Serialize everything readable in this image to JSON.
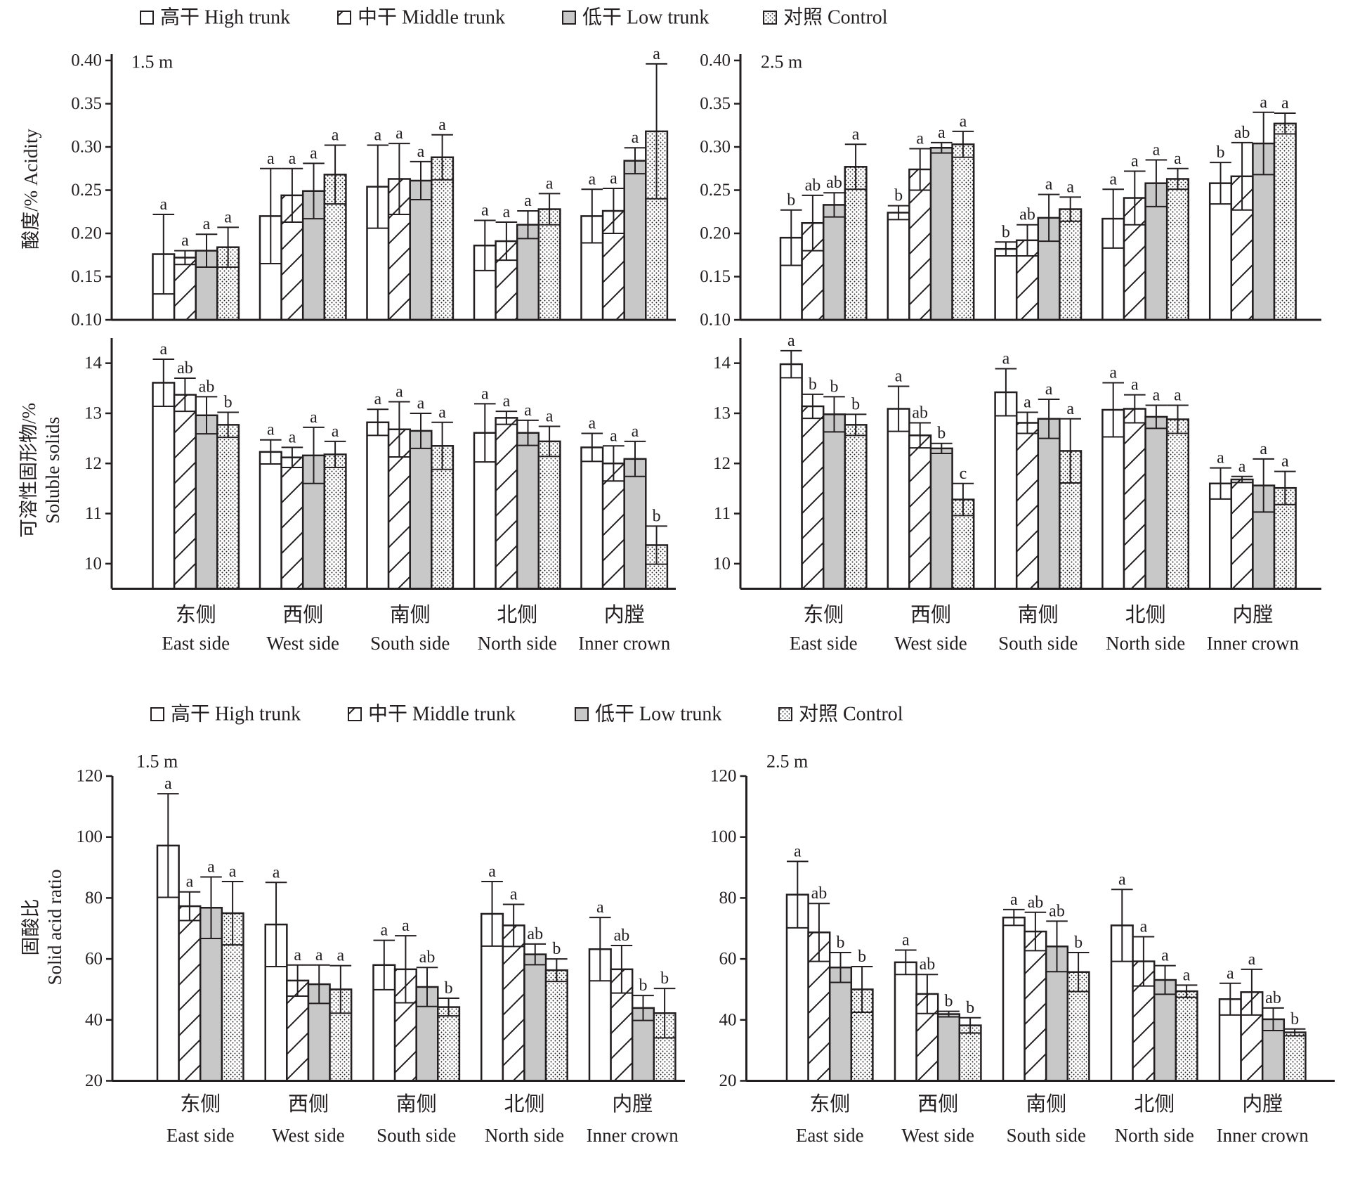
{
  "chart_data": {
    "type": "bar",
    "legend_position": "top",
    "grid": false,
    "categories": [
      {
        "zh": "东侧",
        "en": "East side"
      },
      {
        "zh": "西侧",
        "en": "West side"
      },
      {
        "zh": "南侧",
        "en": "South side"
      },
      {
        "zh": "北侧",
        "en": "North side"
      },
      {
        "zh": "内膛",
        "en": "Inner crown"
      }
    ],
    "series": [
      {
        "name": "高干 High trunk",
        "fill": "#ffffff"
      },
      {
        "name": "中干 Middle trunk",
        "fill": "#ffffff",
        "pattern": "diagonal-hatch"
      },
      {
        "name": "低干 Low trunk",
        "fill": "#c8c8c8"
      },
      {
        "name": "对照 Control",
        "fill": "#ffffff",
        "pattern": "dotted"
      }
    ],
    "panels": [
      {
        "panel_label": "1.5 m",
        "ylabel": [
          "酸度/% Acidity"
        ],
        "ylim": [
          0.1,
          0.4
        ],
        "yticks": [
          "0.10",
          "0.15",
          "0.20",
          "0.25",
          "0.30",
          "0.35",
          "0.40"
        ],
        "series": [
          {
            "values": [
              0.176,
              0.22,
              0.254,
              0.186,
              0.22
            ],
            "err": [
              0.046,
              0.055,
              0.048,
              0.029,
              0.031
            ],
            "letters": [
              "a",
              "a",
              "a",
              "a",
              "a"
            ]
          },
          {
            "values": [
              0.172,
              0.244,
              0.263,
              0.191,
              0.226
            ],
            "err": [
              0.008,
              0.031,
              0.041,
              0.022,
              0.026
            ],
            "letters": [
              "a",
              "a",
              "a",
              "a",
              "a"
            ]
          },
          {
            "values": [
              0.18,
              0.249,
              0.261,
              0.21,
              0.284
            ],
            "err": [
              0.019,
              0.032,
              0.022,
              0.016,
              0.015
            ],
            "letters": [
              "a",
              "a",
              "a",
              "a",
              "a"
            ]
          },
          {
            "values": [
              0.184,
              0.268,
              0.288,
              0.228,
              0.318
            ],
            "err": [
              0.023,
              0.034,
              0.026,
              0.018,
              0.078
            ],
            "letters": [
              "a",
              "a",
              "a",
              "a",
              "a"
            ]
          }
        ]
      },
      {
        "panel_label": "2.5 m",
        "ylim": [
          0.1,
          0.4
        ],
        "yticks": [
          "0.10",
          "0.15",
          "0.20",
          "0.25",
          "0.30",
          "0.35",
          "0.40"
        ],
        "series": [
          {
            "values": [
              0.195,
              0.224,
              0.182,
              0.217,
              0.258
            ],
            "err": [
              0.032,
              0.008,
              0.008,
              0.034,
              0.024
            ],
            "letters": [
              "b",
              "b",
              "b",
              "a",
              "b"
            ]
          },
          {
            "values": [
              0.212,
              0.274,
              0.192,
              0.241,
              0.266
            ],
            "err": [
              0.032,
              0.024,
              0.018,
              0.031,
              0.039
            ],
            "letters": [
              "ab",
              "a",
              "ab",
              "a",
              "ab"
            ]
          },
          {
            "values": [
              0.233,
              0.299,
              0.218,
              0.258,
              0.304
            ],
            "err": [
              0.014,
              0.006,
              0.027,
              0.027,
              0.036
            ],
            "letters": [
              "ab",
              "a",
              "a",
              "a",
              "a"
            ]
          },
          {
            "values": [
              0.277,
              0.303,
              0.228,
              0.263,
              0.327
            ],
            "err": [
              0.026,
              0.015,
              0.014,
              0.012,
              0.012
            ],
            "letters": [
              "a",
              "a",
              "a",
              "a",
              "a"
            ]
          }
        ]
      },
      {
        "ylabel": [
          "可溶性固形物/%",
          "Soluble solids"
        ],
        "ylim": [
          9.5,
          14.5
        ],
        "yticks": [
          "10",
          "11",
          "12",
          "13",
          "14"
        ],
        "series": [
          {
            "values": [
              13.61,
              12.23,
              12.82,
              12.61,
              12.32
            ],
            "err": [
              0.47,
              0.24,
              0.26,
              0.58,
              0.28
            ],
            "letters": [
              "a",
              "a",
              "a",
              "a",
              "a"
            ]
          },
          {
            "values": [
              13.37,
              12.12,
              12.68,
              12.91,
              12.0
            ],
            "err": [
              0.33,
              0.2,
              0.55,
              0.13,
              0.35
            ],
            "letters": [
              "ab",
              "a",
              "a",
              "a",
              "a"
            ]
          },
          {
            "values": [
              12.96,
              12.16,
              12.65,
              12.61,
              12.09
            ],
            "err": [
              0.37,
              0.56,
              0.35,
              0.25,
              0.35
            ],
            "letters": [
              "ab",
              "a",
              "a",
              "a",
              "a"
            ]
          },
          {
            "values": [
              12.77,
              12.18,
              12.35,
              12.44,
              10.37
            ],
            "err": [
              0.25,
              0.26,
              0.47,
              0.3,
              0.38
            ],
            "letters": [
              "b",
              "a",
              "a",
              "a",
              "b"
            ]
          }
        ]
      },
      {
        "ylim": [
          9.5,
          14.5
        ],
        "yticks": [
          "10",
          "11",
          "12",
          "13",
          "14"
        ],
        "series": [
          {
            "values": [
              13.98,
              13.09,
              13.42,
              13.07,
              11.6
            ],
            "err": [
              0.27,
              0.45,
              0.47,
              0.54,
              0.31
            ],
            "letters": [
              "a",
              "a",
              "a",
              "a",
              "a"
            ]
          },
          {
            "values": [
              13.14,
              12.56,
              12.81,
              13.09,
              11.68
            ],
            "err": [
              0.24,
              0.25,
              0.21,
              0.28,
              0.06
            ],
            "letters": [
              "b",
              "ab",
              "a",
              "a",
              "a"
            ]
          },
          {
            "values": [
              12.98,
              12.3,
              12.89,
              12.93,
              11.56
            ],
            "err": [
              0.35,
              0.1,
              0.39,
              0.23,
              0.53
            ],
            "letters": [
              "b",
              "b",
              "a",
              "a",
              "a"
            ]
          },
          {
            "values": [
              12.77,
              11.28,
              12.25,
              12.88,
              11.51
            ],
            "err": [
              0.21,
              0.32,
              0.64,
              0.28,
              0.33
            ],
            "letters": [
              "b",
              "c",
              "a",
              "a",
              "a"
            ]
          }
        ]
      },
      {
        "panel_label": "1.5 m",
        "ylabel": [
          "固酸比",
          "Solid acid ratio"
        ],
        "ylim": [
          20,
          120
        ],
        "yticks": [
          "20",
          "40",
          "60",
          "80",
          "100",
          "120"
        ],
        "series": [
          {
            "values": [
              97.2,
              71.3,
              58.0,
              74.8,
              63.2
            ],
            "err": [
              17.0,
              13.8,
              8.1,
              10.6,
              10.4
            ],
            "letters": [
              "a",
              "a",
              "a",
              "a",
              "a"
            ]
          },
          {
            "values": [
              77.3,
              52.9,
              56.6,
              71.0,
              56.6
            ],
            "err": [
              4.7,
              5.1,
              11.0,
              6.9,
              7.8
            ],
            "letters": [
              "a",
              "a",
              "a",
              "a",
              "ab"
            ]
          },
          {
            "values": [
              76.8,
              51.7,
              50.8,
              61.5,
              43.9
            ],
            "err": [
              10.1,
              6.3,
              6.4,
              3.4,
              4.1
            ],
            "letters": [
              "a",
              "a",
              "ab",
              "ab",
              "b"
            ]
          },
          {
            "values": [
              75.0,
              50.0,
              44.2,
              56.3,
              42.2
            ],
            "err": [
              10.4,
              7.8,
              2.9,
              3.7,
              8.1
            ],
            "letters": [
              "a",
              "a",
              "b",
              "b",
              "b"
            ]
          }
        ]
      },
      {
        "panel_label": "2.5 m",
        "ylim": [
          20,
          120
        ],
        "yticks": [
          "20",
          "40",
          "60",
          "80",
          "100",
          "120"
        ],
        "series": [
          {
            "values": [
              81.1,
              58.9,
              73.6,
              71.0,
              46.8
            ],
            "err": [
              10.9,
              4.0,
              2.6,
              11.8,
              5.2
            ],
            "letters": [
              "a",
              "a",
              "a",
              "a",
              "a"
            ]
          },
          {
            "values": [
              68.7,
              48.5,
              69.0,
              59.2,
              49.1
            ],
            "err": [
              9.5,
              6.4,
              6.3,
              8.1,
              7.5
            ],
            "letters": [
              "ab",
              "ab",
              "ab",
              "a",
              "a"
            ]
          },
          {
            "values": [
              57.2,
              41.9,
              64.1,
              53.1,
              40.2
            ],
            "err": [
              4.9,
              0.9,
              8.3,
              4.7,
              3.7
            ],
            "letters": [
              "b",
              "b",
              "ab",
              "a",
              "ab"
            ]
          },
          {
            "values": [
              50.0,
              38.2,
              55.7,
              49.4,
              35.9
            ],
            "err": [
              7.5,
              2.5,
              6.4,
              2.0,
              1.1
            ],
            "letters": [
              "b",
              "b",
              "b",
              "a",
              "b"
            ]
          }
        ]
      }
    ]
  }
}
